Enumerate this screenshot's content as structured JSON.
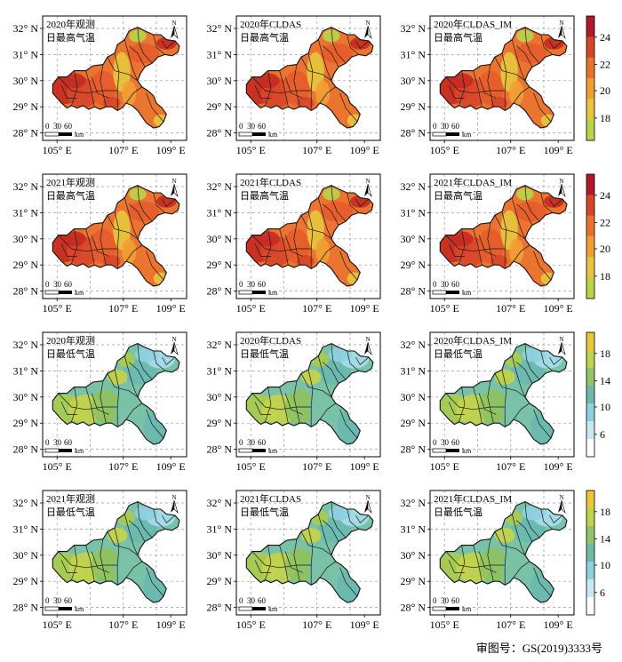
{
  "axes": {
    "x_ticks": [
      "105° E",
      "107° E",
      "109° E"
    ],
    "y_ticks": [
      "32° N",
      "31° N",
      "30° N",
      "29° N",
      "28° N"
    ]
  },
  "scalebar": {
    "ticks": [
      "0",
      "30",
      "60"
    ],
    "unit": "km"
  },
  "north_symbol": "N",
  "panels": [
    {
      "year": "2020年观测",
      "variable": "日最高气温",
      "palette": "max"
    },
    {
      "year": "2020年CLDAS",
      "variable": "日最高气温",
      "palette": "max"
    },
    {
      "year": "2020年CLDAS_IM",
      "variable": "日最高气温",
      "palette": "max"
    },
    {
      "year": "2021年观测",
      "variable": "日最高气温",
      "palette": "max"
    },
    {
      "year": "2021年CLDAS",
      "variable": "日最高气温",
      "palette": "max"
    },
    {
      "year": "2021年CLDAS_IM",
      "variable": "日最高气温",
      "palette": "max"
    },
    {
      "year": "2020年观测",
      "variable": "日最低气温",
      "palette": "min"
    },
    {
      "year": "2020年CLDAS",
      "variable": "日最低气温",
      "palette": "min"
    },
    {
      "year": "2020年CLDAS_IM",
      "variable": "日最低气温",
      "palette": "min"
    },
    {
      "year": "2021年观测",
      "variable": "日最低气温",
      "palette": "min"
    },
    {
      "year": "2021年CLDAS",
      "variable": "日最低气温",
      "palette": "min"
    },
    {
      "year": "2021年CLDAS_IM",
      "variable": "日最低气温",
      "palette": "min"
    }
  ],
  "colorbars": [
    {
      "ticks": [
        "24",
        "22",
        "20",
        "18"
      ],
      "colors": [
        "#b2182b",
        "#d6452a",
        "#e8742e",
        "#f0a033",
        "#e8c540",
        "#b8d44a"
      ]
    },
    {
      "ticks": [
        "24",
        "22",
        "20",
        "18"
      ],
      "colors": [
        "#b2182b",
        "#d6452a",
        "#e8742e",
        "#f0a033",
        "#e8c540",
        "#b8d44a"
      ]
    },
    {
      "ticks": [
        "18",
        "14",
        "10",
        "6"
      ],
      "colors": [
        "#e9c93a",
        "#bfd34c",
        "#93c46a",
        "#70b9a8",
        "#8fd0e0",
        "#c8e8f2",
        "#ffffff"
      ]
    },
    {
      "ticks": [
        "18",
        "14",
        "10",
        "6"
      ],
      "colors": [
        "#e9c93a",
        "#bfd34c",
        "#93c46a",
        "#70b9a8",
        "#8fd0e0",
        "#c8e8f2",
        "#ffffff"
      ]
    }
  ],
  "approval_number": "审图号：GS(2019)3333号"
}
